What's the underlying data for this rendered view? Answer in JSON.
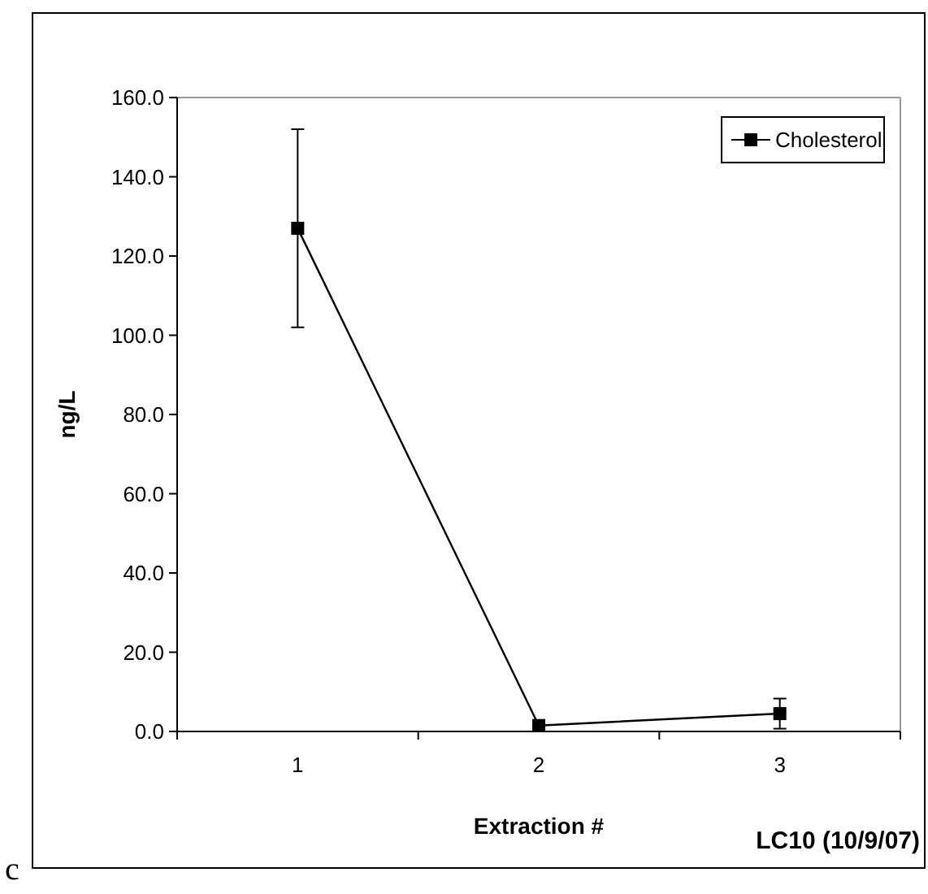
{
  "chart_data": {
    "type": "line",
    "xlabel": "Extraction #",
    "ylabel": "ng/L",
    "categories": [
      "1",
      "2",
      "3"
    ],
    "series": [
      {
        "name": "Cholesterol",
        "color": "#000000",
        "values": [
          127,
          1.5,
          4.5
        ],
        "errors": [
          25,
          null,
          3.8
        ]
      }
    ],
    "ylim": [
      0,
      160
    ],
    "yticks": [
      {
        "value": 0,
        "label": "0.0"
      },
      {
        "value": 20,
        "label": "20.0"
      },
      {
        "value": 40,
        "label": "40.0"
      },
      {
        "value": 60,
        "label": "60.0"
      },
      {
        "value": 80,
        "label": "80.0"
      },
      {
        "value": 100,
        "label": "100.0"
      },
      {
        "value": 120,
        "label": "120.0"
      },
      {
        "value": 140,
        "label": "140.0"
      },
      {
        "value": 160,
        "label": "160.0"
      }
    ],
    "grid": false,
    "legend": "top right",
    "marker": "square",
    "line_style": "solid",
    "annotations": [
      "LC10 (10/9/07)",
      "c"
    ]
  }
}
